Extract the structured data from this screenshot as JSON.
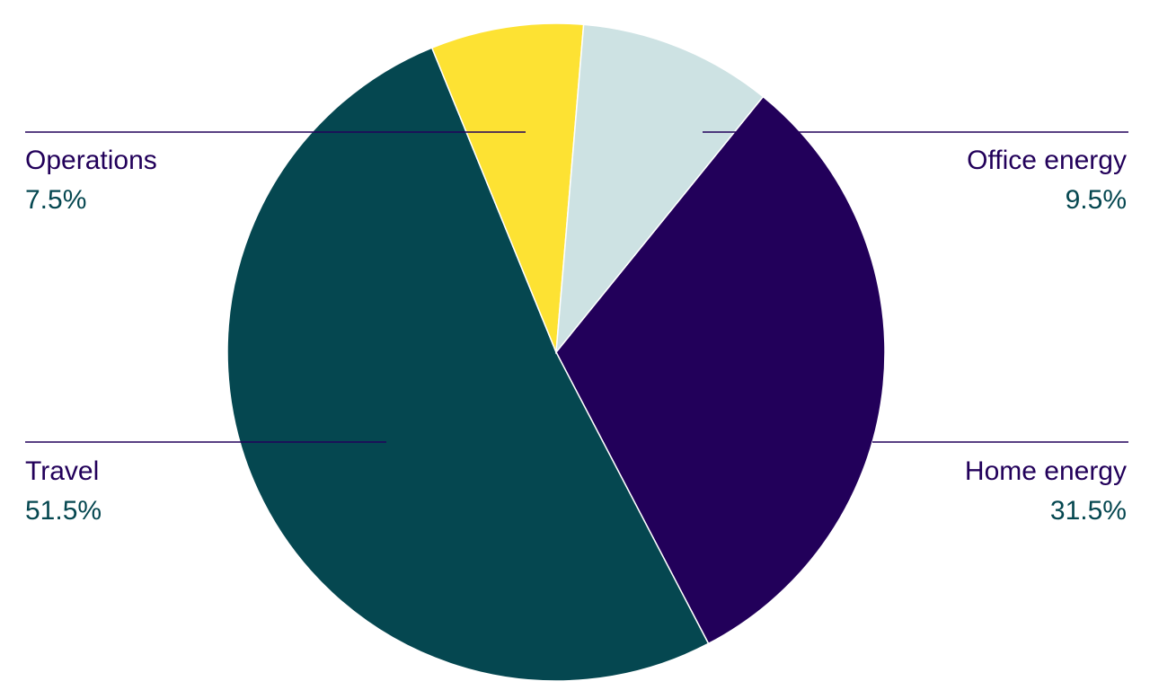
{
  "chart_data": {
    "type": "pie",
    "title": "",
    "slices": [
      {
        "label": "Home energy",
        "value": 31.5,
        "value_label": "31.5%",
        "color": "#22005a"
      },
      {
        "label": "Travel",
        "value": 51.5,
        "value_label": "51.5%",
        "color": "#054750"
      },
      {
        "label": "Operations",
        "value": 7.5,
        "value_label": "7.5%",
        "color": "#fde233"
      },
      {
        "label": "Office energy",
        "value": 9.5,
        "value_label": "9.5%",
        "color": "#cde2e3"
      }
    ],
    "start": "Office energy / Home energy boundary, clockwise",
    "legend": "none",
    "label_color": "#22005a",
    "value_color": "#054750",
    "leader_line_color": "#22005a"
  }
}
